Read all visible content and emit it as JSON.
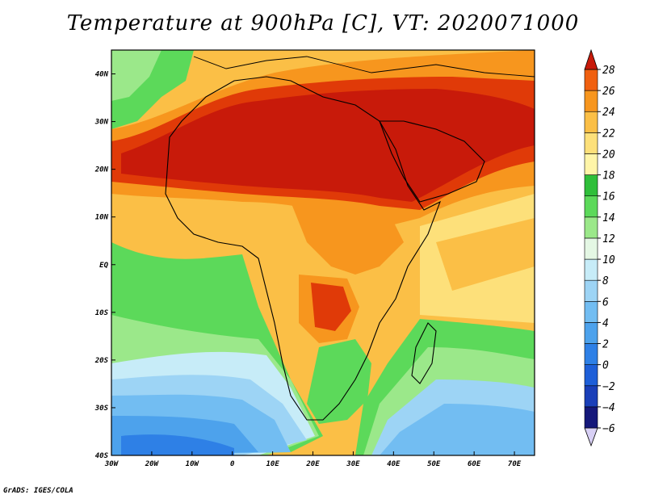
{
  "title": "Temperature at 900hPa [C], VT: 2020071000",
  "credit": "GrADS: IGES/COLA",
  "map": {
    "region": "Africa",
    "lon_range": [
      -30,
      75
    ],
    "lat_range": [
      -40,
      45
    ],
    "lon_ticks": [
      {
        "value": -30,
        "label": "30W"
      },
      {
        "value": -20,
        "label": "20W"
      },
      {
        "value": -10,
        "label": "10W"
      },
      {
        "value": 0,
        "label": "0"
      },
      {
        "value": 10,
        "label": "10E"
      },
      {
        "value": 20,
        "label": "20E"
      },
      {
        "value": 30,
        "label": "30E"
      },
      {
        "value": 40,
        "label": "40E"
      },
      {
        "value": 50,
        "label": "50E"
      },
      {
        "value": 60,
        "label": "60E"
      },
      {
        "value": 70,
        "label": "70E"
      }
    ],
    "lat_ticks": [
      {
        "value": 40,
        "label": "40N"
      },
      {
        "value": 30,
        "label": "30N"
      },
      {
        "value": 20,
        "label": "20N"
      },
      {
        "value": 10,
        "label": "10N"
      },
      {
        "value": 0,
        "label": "EQ"
      },
      {
        "value": -10,
        "label": "10S"
      },
      {
        "value": -20,
        "label": "20S"
      },
      {
        "value": -30,
        "label": "30S"
      },
      {
        "value": -40,
        "label": "40S"
      }
    ]
  },
  "colorbar": {
    "levels": [
      -6,
      -4,
      -2,
      0,
      2,
      4,
      6,
      8,
      10,
      12,
      14,
      16,
      18,
      20,
      22,
      24,
      26,
      28
    ],
    "colors": [
      "#15187a",
      "#1a3fb8",
      "#1e5fd8",
      "#2e80e6",
      "#4da2ec",
      "#72bdf2",
      "#9dd4f5",
      "#c7ecf8",
      "#e4f7e4",
      "#9be88a",
      "#5cd95a",
      "#2fbf3a",
      "#fff5a8",
      "#fde07a",
      "#fbbf46",
      "#f7961e",
      "#f06010",
      "#e03a08",
      "#c81a0a"
    ]
  }
}
